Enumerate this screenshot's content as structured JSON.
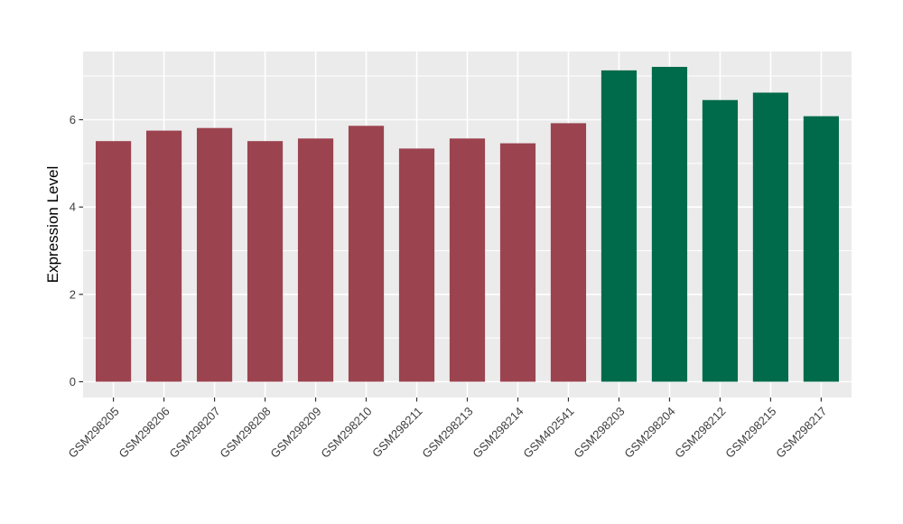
{
  "chart_data": {
    "type": "bar",
    "title": "",
    "xlabel": "",
    "ylabel": "Expression Level",
    "categories": [
      "GSM298205",
      "GSM298206",
      "GSM298207",
      "GSM298208",
      "GSM298209",
      "GSM298210",
      "GSM298211",
      "GSM298213",
      "GSM298214",
      "GSM402541",
      "GSM298203",
      "GSM298204",
      "GSM298212",
      "GSM298215",
      "GSM298217"
    ],
    "values": [
      5.51,
      5.75,
      5.81,
      5.51,
      5.57,
      5.86,
      5.34,
      5.57,
      5.46,
      5.92,
      7.13,
      7.21,
      6.45,
      6.62,
      6.08
    ],
    "bar_colors": [
      "#9C4350",
      "#9C4350",
      "#9C4350",
      "#9C4350",
      "#9C4350",
      "#9C4350",
      "#9C4350",
      "#9C4350",
      "#9C4350",
      "#9C4350",
      "#006B4B",
      "#006B4B",
      "#006B4B",
      "#006B4B",
      "#006B4B"
    ],
    "ylim": [
      -0.362,
      7.562
    ],
    "yticks": {
      "major": [
        0,
        2,
        4,
        6
      ],
      "minor": [
        1,
        3,
        5,
        7
      ],
      "labels": [
        "0",
        "2",
        "4",
        "6"
      ]
    },
    "legend": "none",
    "grid": "on",
    "style": {
      "figure_bg": "#FFFFFF",
      "panel_bg": "#EBEBEB",
      "grid_color": "#FFFFFF",
      "axis_text_color": "#3D3D3D",
      "axis_title_color": "#000000",
      "tick_color": "#333333",
      "group1_color": "#9C4350",
      "group2_color": "#006B4B"
    }
  }
}
